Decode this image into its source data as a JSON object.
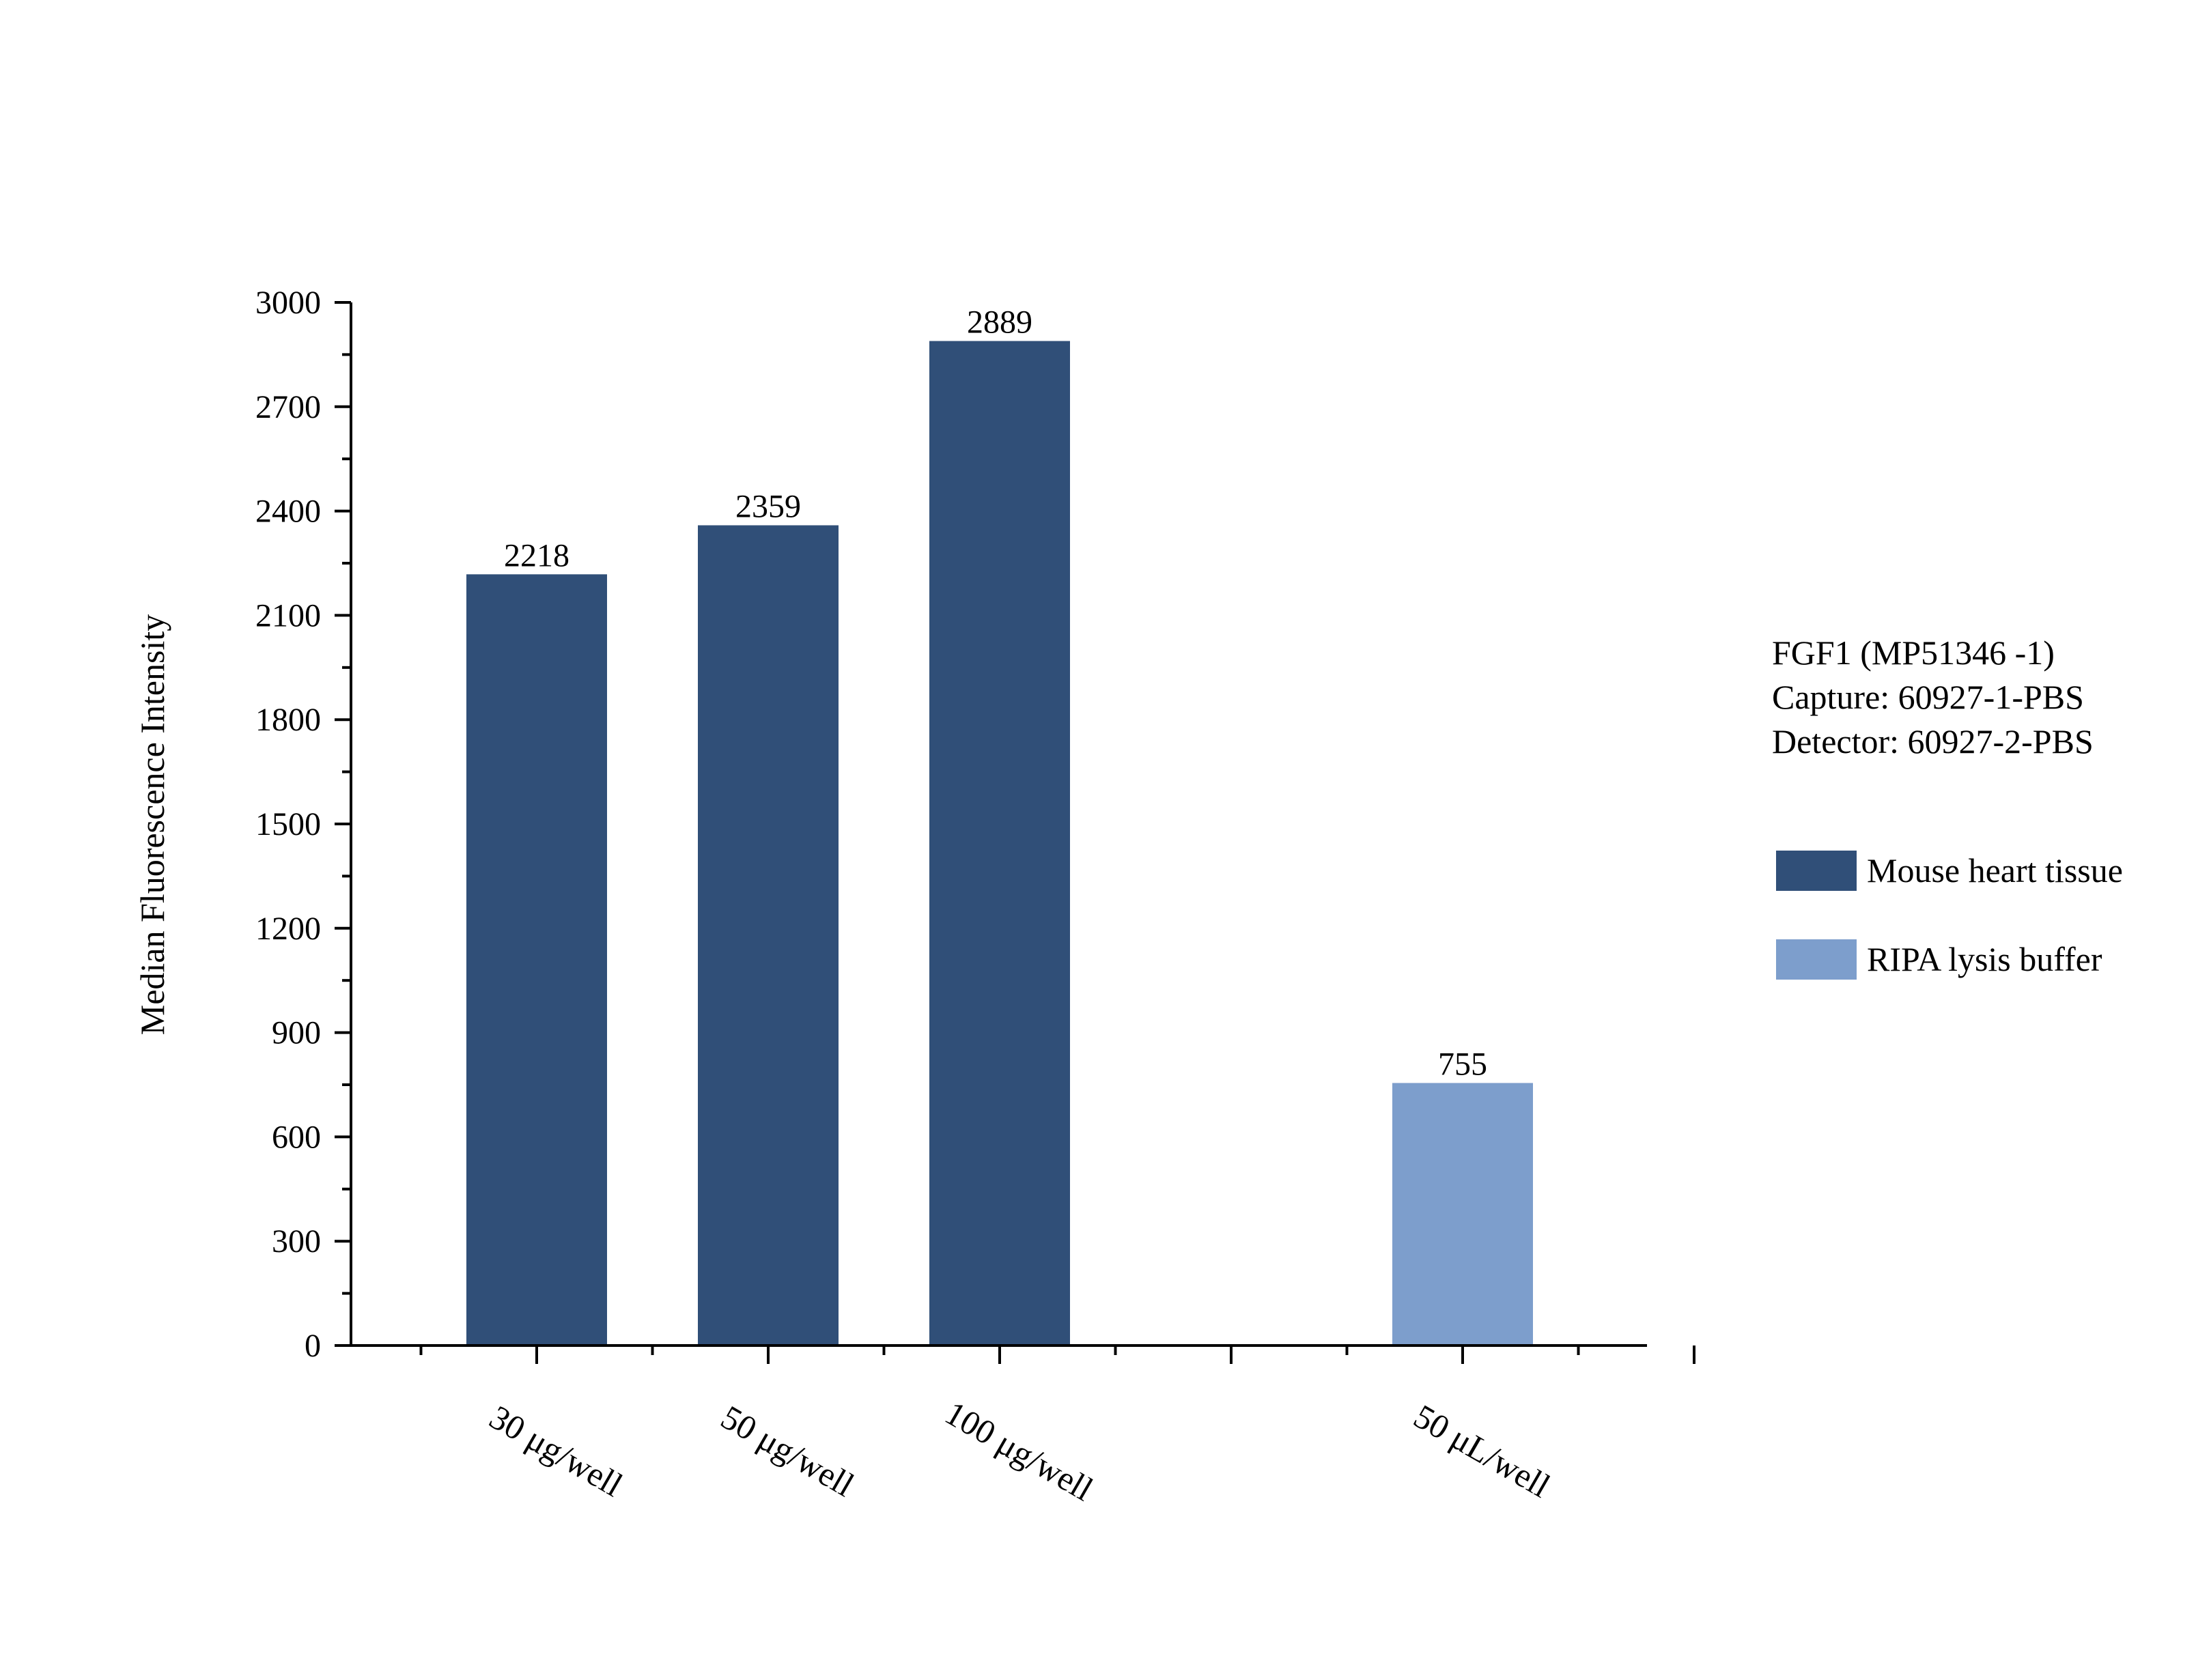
{
  "chart_data": {
    "type": "bar",
    "title": "",
    "xlabel": "",
    "ylabel": "Median Fluorescence Intensity",
    "ylim": [
      0,
      3000
    ],
    "yticks": [
      0,
      300,
      600,
      900,
      1200,
      1500,
      1800,
      2100,
      2400,
      2700,
      3000
    ],
    "grid": false,
    "legend_position": "right",
    "categories": [
      "30 μg/well",
      "50 μg/well",
      "100 μg/well",
      "50 μL/well"
    ],
    "series": [
      {
        "name": "Mouse heart tissue",
        "color": "#304f78",
        "values": [
          2218,
          2359,
          2889,
          null
        ]
      },
      {
        "name": "RIPA lysis buffer",
        "color": "#7d9ecc",
        "values": [
          null,
          null,
          null,
          755
        ]
      }
    ],
    "annotation": [
      "FGF1 (MP51346 -1)",
      "Capture: 60927-1-PBS",
      "Detector: 60927-2-PBS"
    ]
  }
}
